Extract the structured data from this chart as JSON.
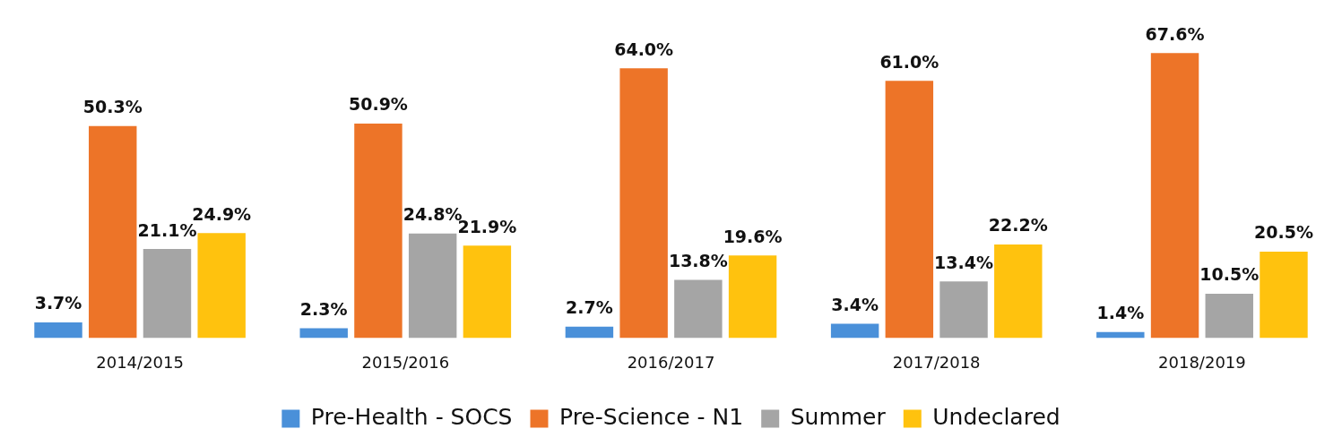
{
  "chart_data": {
    "type": "bar",
    "categories": [
      "2014/2015",
      "2015/2016",
      "2016/2017",
      "2017/2018",
      "2018/2019"
    ],
    "series": [
      {
        "name": "Pre-Health - SOCS",
        "color": "#4a90d9",
        "values": [
          3.7,
          2.3,
          2.7,
          3.4,
          1.4
        ],
        "value_labels": [
          "3.7%",
          "2.3%",
          "2.7%",
          "3.4%",
          "1.4%"
        ]
      },
      {
        "name": "Pre-Science - N1",
        "color": "#ed7428",
        "values": [
          50.3,
          50.9,
          64.0,
          61.0,
          67.6
        ],
        "value_labels": [
          "50.3%",
          "50.9%",
          "64.0%",
          "61.0%",
          "67.6%"
        ]
      },
      {
        "name": "Summer",
        "color": "#a5a5a5",
        "values": [
          21.1,
          24.8,
          13.8,
          13.4,
          10.5
        ],
        "value_labels": [
          "21.1%",
          "24.8%",
          "13.8%",
          "13.4%",
          "10.5%"
        ]
      },
      {
        "name": "Undeclared",
        "color": "#ffc20e",
        "values": [
          24.9,
          21.9,
          19.6,
          22.2,
          20.5
        ],
        "value_labels": [
          "24.9%",
          "21.9%",
          "19.6%",
          "22.2%",
          "20.5%"
        ]
      }
    ],
    "grid": false,
    "legend": "bottom"
  }
}
